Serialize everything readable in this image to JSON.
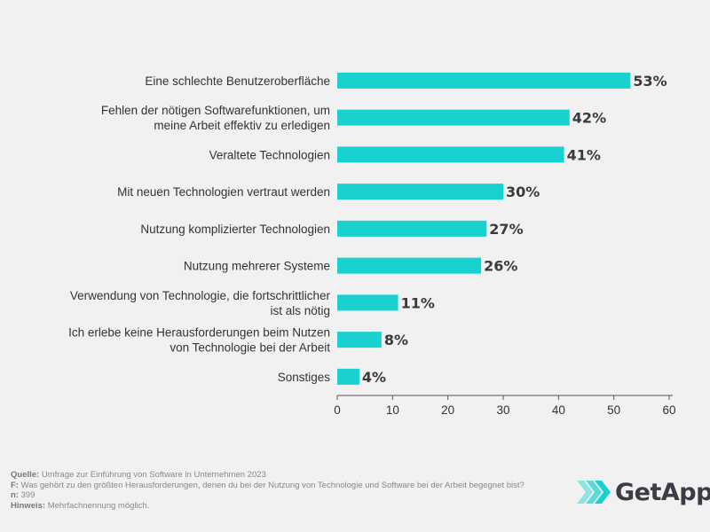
{
  "chart_data": {
    "type": "bar",
    "orientation": "horizontal",
    "categories": [
      [
        "Eine schlechte Benutzeroberfläche"
      ],
      [
        "Fehlen der nötigen Softwarefunktionen, um",
        "meine Arbeit effektiv zu erledigen"
      ],
      [
        "Veraltete Technologien"
      ],
      [
        "Mit neuen Technologien vertraut werden"
      ],
      [
        "Nutzung komplizierter Technologien"
      ],
      [
        "Nutzung mehrerer Systeme"
      ],
      [
        "Verwendung von Technologie, die fortschrittlicher",
        "ist als nötig"
      ],
      [
        "Ich erlebe keine Herausforderungen beim Nutzen",
        "von Technologie bei der Arbeit"
      ],
      [
        "Sonstiges"
      ]
    ],
    "values": [
      53,
      42,
      41,
      30,
      27,
      26,
      11,
      8,
      4
    ],
    "value_labels": [
      "53%",
      "42%",
      "41%",
      "30%",
      "27%",
      "26%",
      "11%",
      "8%",
      "4%"
    ],
    "xlim": [
      0,
      60
    ],
    "xticks": [
      0,
      10,
      20,
      30,
      40,
      50,
      60
    ],
    "grid": false,
    "bar_color": "#19d2d0"
  },
  "footer": {
    "source_label": "Quelle:",
    "source_text": " Umfrage zur Einführung von Software in Unternehmen 2023",
    "question_label": "F:",
    "question_text": " Was gehört zu den größten Herausforderungen, denen du bei der Nutzung von Technologie und Software bei der Arbeit begegnet bist?",
    "n_label": "n:",
    "n_text": " 399",
    "note_label": "Hinweis:",
    "note_text": " Mehrfachnennung möglich."
  },
  "logo": {
    "text": "GetApp",
    "icon": "getapp-chevrons-icon",
    "color": "#3c3c44",
    "accent": "#19d2d0"
  }
}
